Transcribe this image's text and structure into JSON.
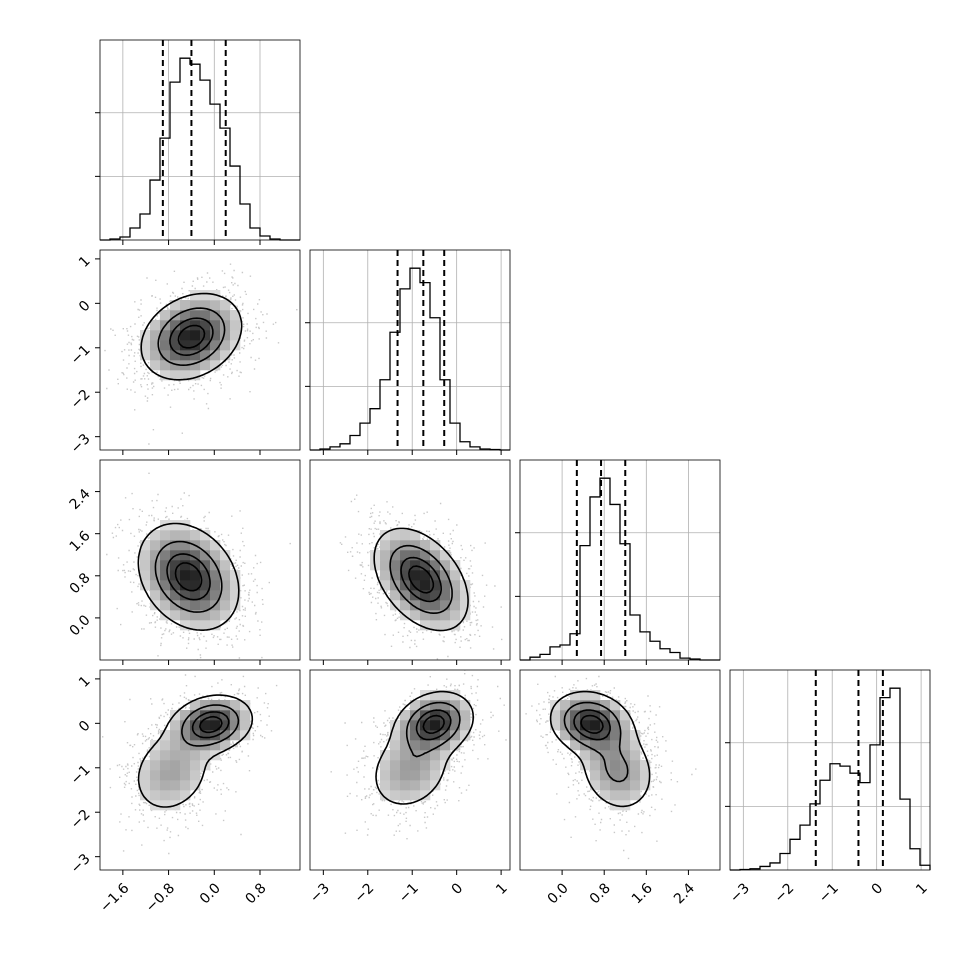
{
  "chart_data": {
    "type": "corner",
    "title": "",
    "grid": true,
    "params": [
      {
        "index": 0,
        "range": [
          -2.0,
          1.5
        ],
        "ticks": [
          -1.6,
          -0.8,
          0.0,
          0.8
        ],
        "tick_labels": [
          "−1.6",
          "−0.8",
          "0.0",
          "0.8"
        ]
      },
      {
        "index": 1,
        "range": [
          -3.3,
          1.2
        ],
        "ticks": [
          -3,
          -2,
          -1,
          0,
          1
        ],
        "tick_labels": [
          "−3",
          "−2",
          "−1",
          "0",
          "1"
        ]
      },
      {
        "index": 2,
        "range": [
          -0.8,
          3.0
        ],
        "ticks": [
          0.0,
          0.8,
          1.6,
          2.4
        ],
        "tick_labels": [
          "0.0",
          "0.8",
          "1.6",
          "2.4"
        ]
      },
      {
        "index": 3,
        "range": [
          -3.3,
          1.2
        ],
        "ticks": [
          -3,
          -2,
          -1,
          0,
          1
        ],
        "tick_labels": [
          "−3",
          "−2",
          "−1",
          "0",
          "1"
        ]
      }
    ],
    "histograms": [
      {
        "param": 0,
        "bin_start": -2.0,
        "bin_width": 0.175,
        "counts": [
          0,
          0.5,
          1.5,
          6,
          13,
          30,
          51,
          79,
          91,
          88,
          80,
          68,
          56,
          37,
          18,
          6,
          2,
          0.5,
          0,
          0
        ],
        "quantiles": [
          -0.9,
          -0.4,
          0.2
        ]
      },
      {
        "param": 1,
        "bin_start": -3.3,
        "bin_width": 0.225,
        "counts": [
          0,
          0.5,
          1.5,
          3,
          7,
          13,
          20,
          34,
          57,
          78,
          88,
          81,
          64,
          34,
          13,
          4,
          1.5,
          0.5,
          0.2,
          0
        ],
        "quantiles": [
          -1.33,
          -0.75,
          -0.28
        ]
      },
      {
        "param": 2,
        "bin_start": -0.8,
        "bin_width": 0.19,
        "counts": [
          0,
          1.5,
          3,
          7,
          8,
          14,
          61,
          87,
          97,
          83,
          62,
          24,
          15,
          10,
          6,
          4,
          1,
          0.5,
          0,
          0
        ],
        "quantiles": [
          0.28,
          0.74,
          1.2
        ]
      },
      {
        "param": 3,
        "bin_start": -3.3,
        "bin_width": 0.225,
        "counts": [
          0,
          0.2,
          0.5,
          1.5,
          3,
          7,
          13,
          19,
          28,
          38,
          45,
          44,
          41,
          37,
          53,
          73,
          77,
          30,
          9,
          2
        ],
        "quantiles": [
          -1.37,
          -0.41,
          0.14
        ]
      }
    ],
    "pairs": [
      {
        "x": 0,
        "y": 1,
        "components": [
          {
            "weight": 0.6,
            "mean": [
              -0.4,
              -0.75
            ],
            "cov": [
              [
                0.18,
                0.05
              ],
              [
                0.05,
                0.22
              ]
            ]
          }
        ]
      },
      {
        "x": 0,
        "y": 2,
        "components": [
          {
            "weight": 0.6,
            "mean": [
              -0.45,
              0.78
            ],
            "cov": [
              [
                0.18,
                -0.055
              ],
              [
                -0.055,
                0.24
              ]
            ]
          }
        ]
      },
      {
        "x": 1,
        "y": 2,
        "components": [
          {
            "weight": 0.6,
            "mean": [
              -0.8,
              0.73
            ],
            "cov": [
              [
                0.26,
                -0.1
              ],
              [
                -0.1,
                0.22
              ]
            ]
          }
        ]
      },
      {
        "x": 0,
        "y": 3,
        "components": [
          {
            "weight": 0.6,
            "mean": [
              -0.05,
              -0.02
            ],
            "cov": [
              [
                0.12,
                0.02
              ],
              [
                0.02,
                0.1
              ]
            ]
          },
          {
            "weight": 0.4,
            "mean": [
              -0.75,
              -1.1
            ],
            "cov": [
              [
                0.15,
                0.04
              ],
              [
                0.04,
                0.28
              ]
            ]
          }
        ]
      },
      {
        "x": 1,
        "y": 3,
        "components": [
          {
            "weight": 0.6,
            "mean": [
              -0.5,
              0.0
            ],
            "cov": [
              [
                0.18,
                0.03
              ],
              [
                0.03,
                0.12
              ]
            ]
          },
          {
            "weight": 0.4,
            "mean": [
              -1.05,
              -1.05
            ],
            "cov": [
              [
                0.25,
                0.05
              ],
              [
                0.05,
                0.25
              ]
            ]
          }
        ]
      },
      {
        "x": 2,
        "y": 3,
        "components": [
          {
            "weight": 0.6,
            "mean": [
              0.55,
              0.0
            ],
            "cov": [
              [
                0.14,
                -0.02
              ],
              [
                -0.02,
                0.12
              ]
            ]
          },
          {
            "weight": 0.4,
            "mean": [
              1.05,
              -1.05
            ],
            "cov": [
              [
                0.14,
                -0.03
              ],
              [
                -0.03,
                0.25
              ]
            ]
          }
        ]
      }
    ],
    "contour_levels": [
      0.118,
      0.393,
      0.675,
      0.865
    ]
  }
}
